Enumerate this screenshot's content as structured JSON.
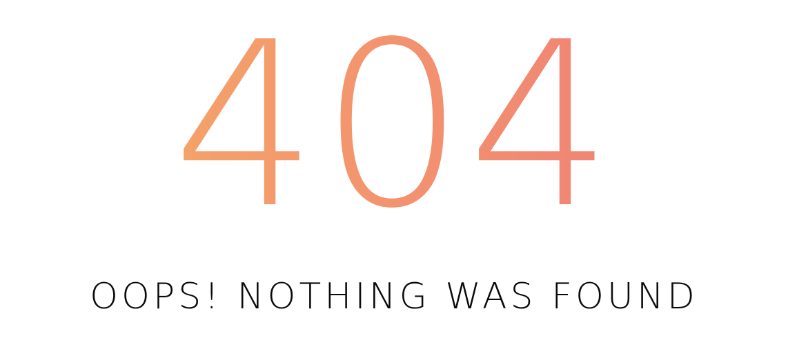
{
  "error": {
    "code": "404",
    "message": "OOPS! NOTHING WAS FOUND"
  },
  "colors": {
    "gradient_start": "#f5a26a",
    "gradient_end": "#f08474",
    "message_text": "#0a0a0a",
    "background": "#ffffff"
  }
}
